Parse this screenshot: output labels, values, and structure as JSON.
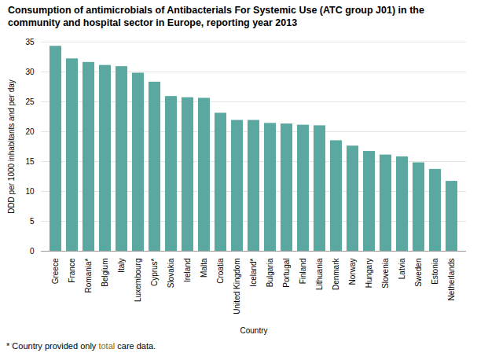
{
  "chart_data": {
    "type": "bar",
    "title": "Consumption of antimicrobials of Antibacterials For Systemic Use (ATC group J01) in the\ncommunity and hospital sector in Europe, reporting year 2013",
    "xlabel": "Country",
    "ylabel": "DDD per 1000 inhabitants and per day",
    "footnote": [
      {
        "text": "* Country provided only ",
        "color": "black"
      },
      {
        "text": "total",
        "color": "#8B6914"
      },
      {
        "text": " care data.",
        "color": "black"
      }
    ],
    "color": "#5BA8A0",
    "ylim": [
      0,
      35
    ],
    "yticks": [
      0,
      5,
      10,
      15,
      20,
      25,
      30,
      35
    ],
    "grid": true,
    "categories": [
      "Greece",
      "France",
      "Romania*",
      "Belgium",
      "Italy",
      "Luxembourg",
      "Cyprus*",
      "Slovakia",
      "Ireland",
      "Malta",
      "Croatia",
      "United Kingdom",
      "Iceland*",
      "Bulgaria",
      "Portugal",
      "Finland",
      "Lithuania",
      "Denmark",
      "Norway",
      "Hungary",
      "Slovenia",
      "Latvia",
      "Sweden",
      "Estonia",
      "Netherlands"
    ],
    "values": [
      34.3,
      32.2,
      31.6,
      31.1,
      30.9,
      29.8,
      28.3,
      25.9,
      25.7,
      25.6,
      23.1,
      21.9,
      21.9,
      21.4,
      21.3,
      21.1,
      21.0,
      18.5,
      17.6,
      16.7,
      16.1,
      15.8,
      14.8,
      13.7,
      11.7
    ]
  }
}
